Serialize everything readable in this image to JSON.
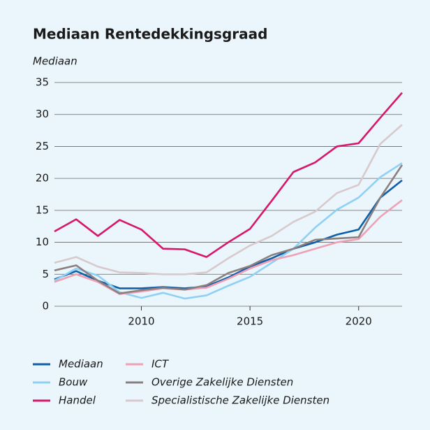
{
  "chart_data": {
    "type": "line",
    "title": "Mediaan Rentedekkingsgraad",
    "y_label": "Mediaan",
    "x": [
      2006,
      2007,
      2008,
      2009,
      2010,
      2011,
      2012,
      2013,
      2014,
      2015,
      2016,
      2017,
      2018,
      2019,
      2020,
      2021,
      2022
    ],
    "xlim": [
      2006,
      2022
    ],
    "xticks": [
      2010,
      2015,
      2020
    ],
    "ylim": [
      0,
      35
    ],
    "yticks": [
      0,
      5,
      10,
      15,
      20,
      25,
      30,
      35
    ],
    "grid": true,
    "series": [
      {
        "name": "Mediaan",
        "color": "#0e5fa8",
        "values": [
          4.2,
          5.5,
          4.0,
          2.8,
          2.8,
          3.0,
          2.8,
          3.1,
          4.5,
          6.2,
          7.5,
          9.0,
          10.0,
          11.2,
          12.0,
          17.0,
          19.7
        ]
      },
      {
        "name": "Bouw",
        "color": "#8fd0f5",
        "values": [
          4.0,
          5.9,
          4.8,
          2.2,
          1.3,
          2.1,
          1.2,
          1.7,
          3.2,
          4.6,
          6.8,
          9.0,
          12.3,
          15.1,
          17.0,
          20.2,
          22.4
        ]
      },
      {
        "name": "Handel",
        "color": "#d6176a",
        "values": [
          11.7,
          13.6,
          11.0,
          13.5,
          12.0,
          9.0,
          8.9,
          7.7,
          10.0,
          12.1,
          16.5,
          21.0,
          22.5,
          25.0,
          25.5,
          29.5,
          33.4
        ]
      },
      {
        "name": "ICT",
        "color": "#f0a0b4",
        "values": [
          3.8,
          5.0,
          3.8,
          1.9,
          2.3,
          2.8,
          2.6,
          2.9,
          4.3,
          5.9,
          7.2,
          8.0,
          9.0,
          10.0,
          10.5,
          14.0,
          16.6
        ]
      },
      {
        "name": "Overige Zakelijke Diensten",
        "color": "#8c7f7f",
        "values": [
          5.6,
          6.4,
          4.0,
          2.0,
          2.5,
          2.9,
          2.6,
          3.3,
          5.2,
          6.3,
          8.0,
          9.0,
          10.4,
          10.6,
          10.8,
          17.0,
          22.1
        ]
      },
      {
        "name": "Specialistische Zakelijke Diensten",
        "color": "#d8c9cc",
        "values": [
          6.8,
          7.7,
          6.2,
          5.3,
          5.2,
          5.0,
          5.0,
          5.3,
          7.5,
          9.5,
          11.0,
          13.2,
          14.8,
          17.7,
          19.0,
          25.4,
          28.4
        ]
      }
    ]
  }
}
